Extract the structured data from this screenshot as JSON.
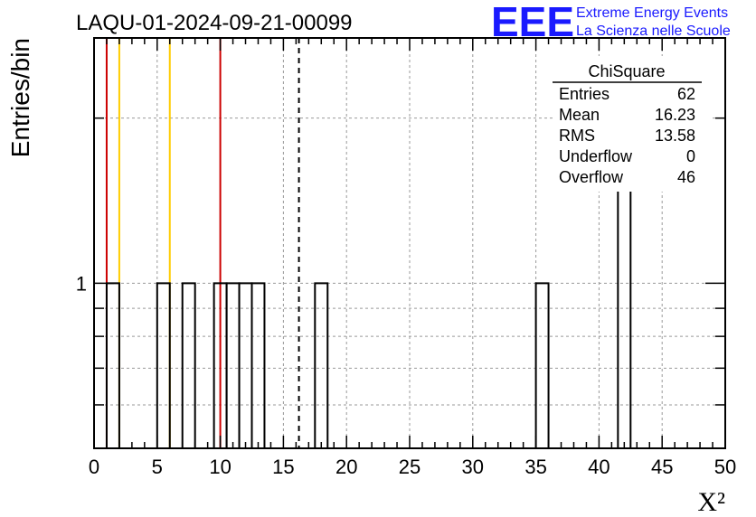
{
  "chart_data": {
    "type": "bar",
    "title": "LAQU-01-2024-09-21-00099",
    "xlabel": "X²",
    "ylabel": "Entries/bin",
    "x_ticks": [
      "0",
      "5",
      "10",
      "15",
      "20",
      "25",
      "30",
      "35",
      "40",
      "45",
      "50"
    ],
    "y_ticks": [
      "1"
    ],
    "xlim": [
      0,
      50
    ],
    "ylim": [
      0.5,
      2.8
    ],
    "y_scale": "log",
    "grid": true,
    "bin_width": 1,
    "bins": [
      {
        "x": 1,
        "value": 1
      },
      {
        "x": 5,
        "value": 1
      },
      {
        "x": 7,
        "value": 1
      },
      {
        "x": 9.5,
        "value": 1
      },
      {
        "x": 10.5,
        "value": 1
      },
      {
        "x": 11.5,
        "value": 1
      },
      {
        "x": 12.5,
        "value": 1
      },
      {
        "x": 17.5,
        "value": 1
      },
      {
        "x": 35,
        "value": 1
      },
      {
        "x": 41.5,
        "value": 2
      }
    ],
    "vertical_lines": [
      {
        "x": 1.0,
        "color": "#cc0000",
        "style": "solid"
      },
      {
        "x": 2.0,
        "color": "#ffcc00",
        "style": "solid"
      },
      {
        "x": 6.0,
        "color": "#ffcc00",
        "style": "solid"
      },
      {
        "x": 10.0,
        "color": "#cc0000",
        "style": "solid"
      },
      {
        "x": 16.23,
        "color": "#000000",
        "style": "dashed"
      }
    ],
    "stats": {
      "title": "ChiSquare",
      "rows": [
        {
          "label": "Entries",
          "value": "62"
        },
        {
          "label": "Mean",
          "value": "16.23"
        },
        {
          "label": "RMS",
          "value": "13.58"
        },
        {
          "label": "Underflow",
          "value": "0"
        },
        {
          "label": "Overflow",
          "value": "46"
        }
      ]
    }
  },
  "logo": {
    "mark": "EEE",
    "line1": "Extreme Energy Events",
    "line2": "La Scienza nelle Scuole",
    "color": "#1a1aff"
  }
}
